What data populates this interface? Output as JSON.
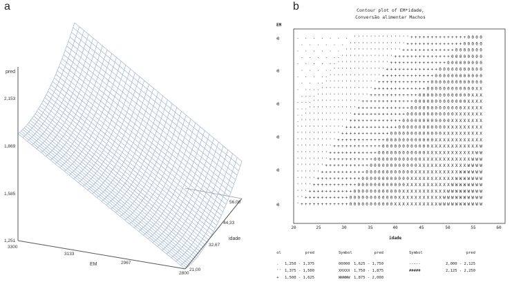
{
  "panels": {
    "a": {
      "letter": "a"
    },
    "b": {
      "letter": "b"
    }
  },
  "chart_data": [
    {
      "type": "surface",
      "panel": "a",
      "zlabel": "pred",
      "xlabel": "EM",
      "ylabel": "idade",
      "z_ticks": [
        "1,251",
        "1,585",
        "1,869",
        "2,153"
      ],
      "x_ticks": [
        "3300",
        "3133",
        "2967",
        "2800"
      ],
      "y_ticks": [
        "21,00",
        "32,67",
        "44,33",
        "56,00"
      ],
      "xlim": [
        2800,
        3300
      ],
      "ylim": [
        21,
        56
      ],
      "zlim": [
        1.251,
        2.153
      ],
      "mesh_color": "#9fb4d4"
    },
    {
      "type": "contour",
      "panel": "b",
      "title_line1": "Contour plot of EM*idade,",
      "title_line2": "Conversão alimentar Machos",
      "ylabel": "EM",
      "xlabel": "idade",
      "x_ticks": [
        "20",
        "25",
        "30",
        "35",
        "40",
        "45",
        "50",
        "55",
        "60"
      ],
      "y_ticks": [
        "3300",
        "3200",
        "3100",
        "3000",
        "2900",
        "2800"
      ],
      "xlim": [
        20,
        60
      ],
      "ylim": [
        2800,
        3300
      ],
      "legend": {
        "header_symbol": "Symbol",
        "header_value": "pred",
        "entries": [
          {
            "symbol": ".....",
            "range": "1,250 - 1,375"
          },
          {
            "symbol": "+++++",
            "range": "1,500 - 1,625"
          },
          {
            "symbol": "XXXXX",
            "range": "1,750 - 1,875"
          },
          {
            "symbol": "-----",
            "range": "2,000 - 2,125"
          },
          {
            "symbol": "''''''",
            "range": "1,375 - 1,500"
          },
          {
            "symbol": "00000",
            "range": "1,625 - 1,750"
          },
          {
            "symbol": "WWWWW",
            "range": "1,875 - 2,000"
          },
          {
            "symbol": "#####",
            "range": "2,125 - 2,250"
          }
        ]
      }
    }
  ]
}
